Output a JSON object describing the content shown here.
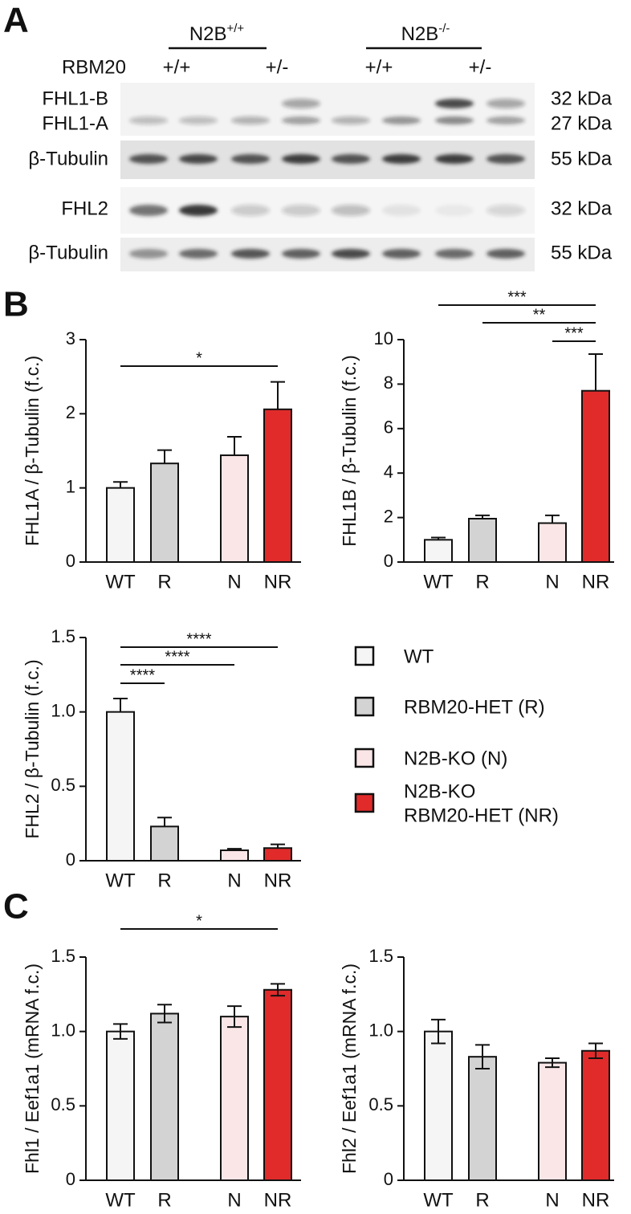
{
  "panel_labels": [
    "A",
    "B",
    "C"
  ],
  "blot": {
    "groups": [
      {
        "name": "N2B",
        "genotype": "+/+"
      },
      {
        "name": "N2B",
        "genotype": "-/-"
      }
    ],
    "row_header": "RBM20",
    "lanes": [
      "+/+",
      "+/-",
      "+/+",
      "+/-"
    ],
    "rows": [
      {
        "label": "FHL1-B",
        "size": "32 kDa"
      },
      {
        "label": "FHL1-A",
        "size": "27 kDa"
      },
      {
        "label": "β-Tubulin",
        "size": "55 kDa"
      },
      {
        "label": "FHL2",
        "size": "32 kDa"
      },
      {
        "label": "β-Tubulin",
        "size": "55 kDa"
      }
    ]
  },
  "legend": {
    "labels": [
      [
        "WT"
      ],
      [
        "RBM20-HET (R)"
      ],
      [
        "N2B-KO (N)"
      ],
      [
        "N2B-KO",
        "RBM20-HET (NR)"
      ]
    ]
  },
  "chart_data": [
    {
      "type": "bar",
      "ylabel": "FHL1A / β-Tubulin (f.c.)",
      "categories": [
        "WT",
        "R",
        "N",
        "NR"
      ],
      "values": [
        1.0,
        1.33,
        1.44,
        2.06
      ],
      "errors": [
        0.08,
        0.18,
        0.25,
        0.37
      ],
      "error_direction": "up",
      "colors": [
        "#f5f5f5",
        "#d3d3d3",
        "#fbe6e7",
        "#e12b2b"
      ],
      "ylim": [
        0,
        3
      ],
      "yticks": [
        0,
        1,
        2,
        3
      ],
      "comparisons": [
        {
          "label": "*",
          "from": 0,
          "to": 3
        }
      ]
    },
    {
      "type": "bar",
      "ylabel": "FHL1B / β-Tubulin (f.c.)",
      "categories": [
        "WT",
        "R",
        "N",
        "NR"
      ],
      "values": [
        1.0,
        1.95,
        1.75,
        7.7
      ],
      "errors": [
        0.1,
        0.15,
        0.35,
        1.65
      ],
      "error_direction": "up",
      "colors": [
        "#f5f5f5",
        "#d3d3d3",
        "#fbe6e7",
        "#e12b2b"
      ],
      "ylim": [
        0,
        10
      ],
      "yticks": [
        0,
        2,
        4,
        6,
        8,
        10
      ],
      "comparisons": [
        {
          "label": "***",
          "from": 0,
          "to": 3
        },
        {
          "label": "**",
          "from": 1,
          "to": 3
        },
        {
          "label": "***",
          "from": 2,
          "to": 3
        }
      ]
    },
    {
      "type": "bar",
      "ylabel": "FHL2 / β-Tubulin (f.c.)",
      "categories": [
        "WT",
        "R",
        "N",
        "NR"
      ],
      "values": [
        1.0,
        0.23,
        0.07,
        0.085
      ],
      "errors": [
        0.09,
        0.06,
        0.01,
        0.025
      ],
      "error_direction": "up",
      "colors": [
        "#f5f5f5",
        "#d3d3d3",
        "#fbe6e7",
        "#e12b2b"
      ],
      "ylim": [
        0,
        1.5
      ],
      "yticks": [
        0,
        0.5,
        {
          "value": 1,
          "label": "1.0"
        },
        1.5
      ],
      "comparisons": [
        {
          "label": "****",
          "from": 0,
          "to": 3
        },
        {
          "label": "****",
          "from": 0,
          "to": 2
        },
        {
          "label": "****",
          "from": 0,
          "to": 1
        }
      ]
    },
    {
      "type": "bar",
      "ylabel": "Fhl1 / Eef1a1 (mRNA f.c.)",
      "categories": [
        "WT",
        "R",
        "N",
        "NR"
      ],
      "values": [
        1.0,
        1.12,
        1.1,
        1.28
      ],
      "errors": [
        0.05,
        0.06,
        0.07,
        0.04
      ],
      "error_direction": "both",
      "colors": [
        "#f5f5f5",
        "#d3d3d3",
        "#fbe6e7",
        "#e12b2b"
      ],
      "ylim": [
        0,
        1.5
      ],
      "yticks": [
        0,
        0.5,
        {
          "value": 1,
          "label": "1.0"
        },
        1.5
      ],
      "comparisons": [
        {
          "label": "*",
          "from": 0,
          "to": 3
        }
      ]
    },
    {
      "type": "bar",
      "ylabel": "Fhl2 / Eef1a1 (mRNA f.c.)",
      "categories": [
        "WT",
        "R",
        "N",
        "NR"
      ],
      "values": [
        1.0,
        0.83,
        0.79,
        0.87
      ],
      "errors": [
        0.08,
        0.08,
        0.03,
        0.05
      ],
      "error_direction": "both",
      "colors": [
        "#f5f5f5",
        "#d3d3d3",
        "#fbe6e7",
        "#e12b2b"
      ],
      "ylim": [
        0,
        1.5
      ],
      "yticks": [
        0,
        0.5,
        {
          "value": 1,
          "label": "1.0"
        },
        1.5
      ],
      "comparisons": []
    }
  ]
}
